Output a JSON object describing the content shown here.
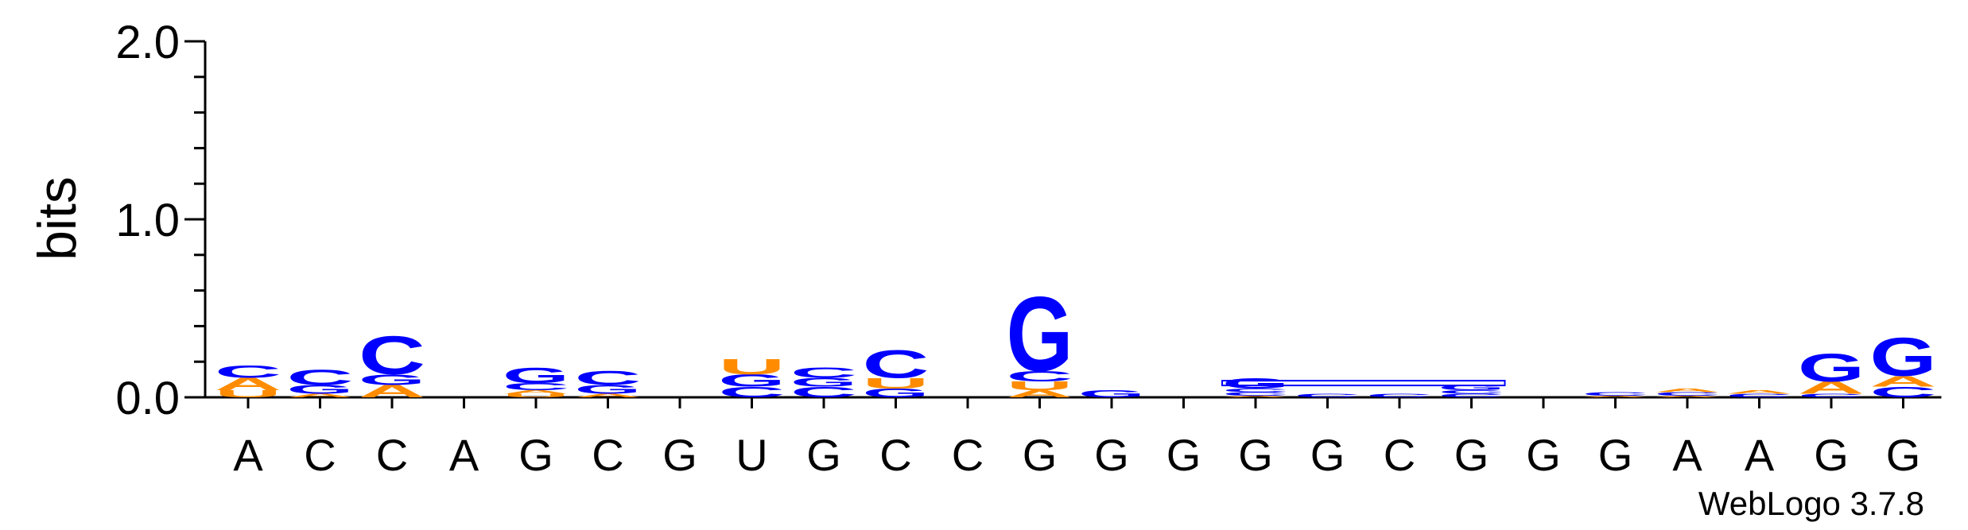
{
  "chart_data": {
    "type": "sequence-logo",
    "ylabel": "bits",
    "ylim": [
      0,
      2.0
    ],
    "yticks": [
      "0.0",
      "1.0",
      "2.0"
    ],
    "xtick_labels": [
      "A",
      "C",
      "C",
      "A",
      "G",
      "C",
      "G",
      "U",
      "G",
      "C",
      "C",
      "G",
      "G",
      "G",
      "G",
      "G",
      "C",
      "G",
      "G",
      "G",
      "A",
      "A",
      "G",
      "G"
    ],
    "colors": {
      "A": "#FF8C00",
      "U": "#FF8C00",
      "C": "#0000FF",
      "G": "#0000FF"
    },
    "positions": [
      [
        {
          "l": "U",
          "v": 0.04
        },
        {
          "l": "A",
          "v": 0.07
        },
        {
          "l": "C",
          "v": 0.07
        }
      ],
      [
        {
          "l": "A",
          "v": 0.02
        },
        {
          "l": "G",
          "v": 0.05
        },
        {
          "l": "C",
          "v": 0.09
        }
      ],
      [
        {
          "l": "A",
          "v": 0.07
        },
        {
          "l": "G",
          "v": 0.06
        },
        {
          "l": "C",
          "v": 0.22
        }
      ],
      [],
      [
        {
          "l": "U",
          "v": 0.02
        },
        {
          "l": "A",
          "v": 0.02
        },
        {
          "l": "C",
          "v": 0.04
        },
        {
          "l": "G",
          "v": 0.09
        }
      ],
      [
        {
          "l": "A",
          "v": 0.02
        },
        {
          "l": "G",
          "v": 0.05
        },
        {
          "l": "C",
          "v": 0.08
        }
      ],
      [],
      [
        {
          "l": "C",
          "v": 0.06
        },
        {
          "l": "G",
          "v": 0.07
        },
        {
          "l": "U",
          "v": 0.09
        }
      ],
      [
        {
          "l": "C",
          "v": 0.06
        },
        {
          "l": "G",
          "v": 0.05
        },
        {
          "l": "C",
          "v": 0.06
        }
      ],
      [
        {
          "l": "G",
          "v": 0.05
        },
        {
          "l": "U",
          "v": 0.06
        },
        {
          "l": "C",
          "v": 0.16
        }
      ],
      [],
      [
        {
          "l": "A",
          "v": 0.04
        },
        {
          "l": "U",
          "v": 0.05
        },
        {
          "l": "C",
          "v": 0.06
        },
        {
          "l": "G",
          "v": 0.43
        }
      ],
      [
        {
          "l": "G",
          "v": 0.04
        }
      ],
      [],
      [
        {
          "l": "A",
          "v": 0.01
        },
        {
          "l": "C",
          "v": 0.02
        },
        {
          "l": "C",
          "v": 0.02
        },
        {
          "l": "G",
          "v": 0.06
        }
      ],
      [
        {
          "l": "C",
          "v": 0.02
        }
      ],
      [
        {
          "l": "C",
          "v": 0.02
        }
      ],
      [
        {
          "l": "C",
          "v": 0.02
        },
        {
          "l": "C",
          "v": 0.02
        },
        {
          "l": "G",
          "v": 0.03
        }
      ],
      [],
      [
        {
          "l": "A",
          "v": 0.01
        },
        {
          "l": "C",
          "v": 0.02
        }
      ],
      [
        {
          "l": "A",
          "v": 0.01
        },
        {
          "l": "C",
          "v": 0.02
        },
        {
          "l": "A",
          "v": 0.02
        }
      ],
      [
        {
          "l": "C",
          "v": 0.02
        },
        {
          "l": "A",
          "v": 0.02
        }
      ],
      [
        {
          "l": "C",
          "v": 0.02
        },
        {
          "l": "A",
          "v": 0.07
        },
        {
          "l": "G",
          "v": 0.16
        }
      ],
      [
        {
          "l": "C",
          "v": 0.06
        },
        {
          "l": "A",
          "v": 0.06
        },
        {
          "l": "G",
          "v": 0.22
        }
      ]
    ],
    "connector_span": {
      "from_position": 14,
      "to_position": 17,
      "value": 0.08
    },
    "footer": "WebLogo 3.7.8"
  }
}
